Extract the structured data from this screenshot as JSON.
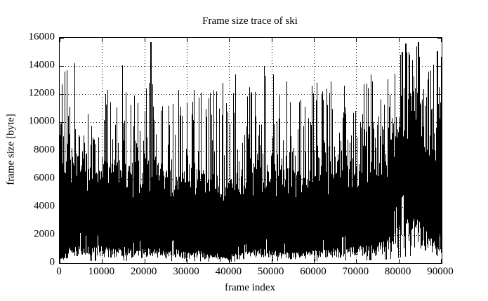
{
  "title": "Frame size trace of ski",
  "chart_data": {
    "type": "line",
    "title": "Frame size trace of ski",
    "xlabel": "frame index",
    "ylabel": "frame size [byte]",
    "xlim": [
      0,
      90000
    ],
    "ylim": [
      0,
      16000
    ],
    "xticks": [
      0,
      10000,
      20000,
      30000,
      40000,
      50000,
      60000,
      70000,
      80000,
      90000
    ],
    "yticks": [
      0,
      2000,
      4000,
      6000,
      8000,
      10000,
      12000,
      14000,
      16000
    ],
    "grid": "dotted",
    "legend": "none",
    "line_color": "#000000",
    "background": "#ffffff",
    "description": "Dense black frame-by-frame video trace; ~90000 frames rendered as per-column min/max vertical lines. Solid core band with thin comb spikes above and jagged minima below.",
    "envelope": [
      {
        "x": 0,
        "lo": 300,
        "core": 8200,
        "hi": 13600
      },
      {
        "x": 1000,
        "lo": 400,
        "core": 8000,
        "hi": 13000
      },
      {
        "x": 2500,
        "lo": 800,
        "core": 7000,
        "hi": 11000
      },
      {
        "x": 5000,
        "lo": 900,
        "core": 6500,
        "hi": 10600
      },
      {
        "x": 7500,
        "lo": 700,
        "core": 6100,
        "hi": 10800
      },
      {
        "x": 10000,
        "lo": 900,
        "core": 6300,
        "hi": 11500
      },
      {
        "x": 12500,
        "lo": 700,
        "core": 6200,
        "hi": 12000
      },
      {
        "x": 15000,
        "lo": 800,
        "core": 6000,
        "hi": 11800
      },
      {
        "x": 17500,
        "lo": 600,
        "core": 5800,
        "hi": 11900
      },
      {
        "x": 20000,
        "lo": 700,
        "core": 6400,
        "hi": 12400
      },
      {
        "x": 22500,
        "lo": 800,
        "core": 6000,
        "hi": 11200
      },
      {
        "x": 25000,
        "lo": 600,
        "core": 5600,
        "hi": 11600
      },
      {
        "x": 27500,
        "lo": 700,
        "core": 5800,
        "hi": 12000
      },
      {
        "x": 30000,
        "lo": 500,
        "core": 5500,
        "hi": 11200
      },
      {
        "x": 32500,
        "lo": 600,
        "core": 5600,
        "hi": 12000
      },
      {
        "x": 35000,
        "lo": 500,
        "core": 5400,
        "hi": 12000
      },
      {
        "x": 37500,
        "lo": 450,
        "core": 5200,
        "hi": 12400
      },
      {
        "x": 40000,
        "lo": 400,
        "core": 5000,
        "hi": 11600
      },
      {
        "x": 42500,
        "lo": 500,
        "core": 5500,
        "hi": 12200
      },
      {
        "x": 45000,
        "lo": 600,
        "core": 5800,
        "hi": 12300
      },
      {
        "x": 47500,
        "lo": 700,
        "core": 6200,
        "hi": 13000
      },
      {
        "x": 50000,
        "lo": 700,
        "core": 6000,
        "hi": 13000
      },
      {
        "x": 52500,
        "lo": 600,
        "core": 5800,
        "hi": 12600
      },
      {
        "x": 55000,
        "lo": 500,
        "core": 5500,
        "hi": 11600
      },
      {
        "x": 57500,
        "lo": 600,
        "core": 5600,
        "hi": 12000
      },
      {
        "x": 60000,
        "lo": 600,
        "core": 5800,
        "hi": 12400
      },
      {
        "x": 62500,
        "lo": 700,
        "core": 6000,
        "hi": 12100
      },
      {
        "x": 65000,
        "lo": 700,
        "core": 6200,
        "hi": 12700
      },
      {
        "x": 67500,
        "lo": 800,
        "core": 6300,
        "hi": 12500
      },
      {
        "x": 70000,
        "lo": 800,
        "core": 6500,
        "hi": 12600
      },
      {
        "x": 72500,
        "lo": 900,
        "core": 6800,
        "hi": 13200
      },
      {
        "x": 75000,
        "lo": 1000,
        "core": 7000,
        "hi": 12500
      },
      {
        "x": 77500,
        "lo": 1200,
        "core": 7600,
        "hi": 13100
      },
      {
        "x": 80000,
        "lo": 1800,
        "core": 9200,
        "hi": 14600
      },
      {
        "x": 82500,
        "lo": 2300,
        "core": 10600,
        "hi": 15300
      },
      {
        "x": 85000,
        "lo": 2000,
        "core": 10200,
        "hi": 15200
      },
      {
        "x": 87500,
        "lo": 1200,
        "core": 8600,
        "hi": 13600
      },
      {
        "x": 90000,
        "lo": 800,
        "core": 8200,
        "hi": 14600
      }
    ],
    "spikes": [
      [
        500,
        12700
      ],
      [
        1100,
        13600
      ],
      [
        1600,
        13700
      ],
      [
        3500,
        14200
      ],
      [
        11200,
        12300
      ],
      [
        14700,
        14050
      ],
      [
        17600,
        11900
      ],
      [
        21000,
        12800
      ],
      [
        21400,
        15700
      ],
      [
        21900,
        12700
      ],
      [
        28000,
        12300
      ],
      [
        31600,
        12300
      ],
      [
        35400,
        12100
      ],
      [
        38400,
        12800
      ],
      [
        41500,
        13400
      ],
      [
        44800,
        12500
      ],
      [
        48300,
        14000
      ],
      [
        48600,
        13300
      ],
      [
        50400,
        13400
      ],
      [
        53600,
        12900
      ],
      [
        59500,
        12600
      ],
      [
        62000,
        12200
      ],
      [
        64000,
        12900
      ],
      [
        67200,
        12600
      ],
      [
        71800,
        12700
      ],
      [
        73500,
        13400
      ],
      [
        80700,
        15000
      ],
      [
        81600,
        15600
      ],
      [
        82400,
        14800
      ],
      [
        84500,
        15700
      ],
      [
        87000,
        13600
      ],
      [
        89000,
        15050
      ]
    ],
    "noise_seed": 1337
  }
}
